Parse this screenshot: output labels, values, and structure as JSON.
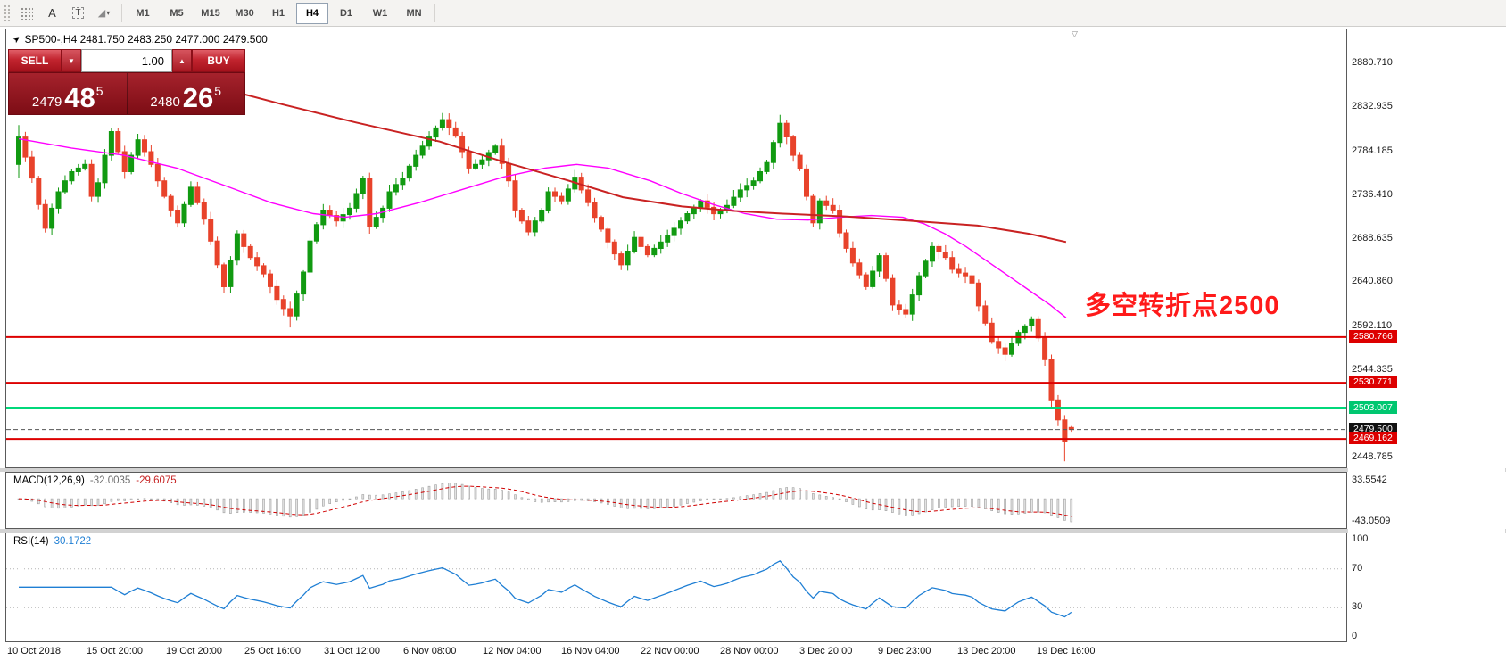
{
  "toolbar": {
    "tools": [
      {
        "name": "objects-grid-icon",
        "glyph": "dots"
      },
      {
        "name": "text-annotation-icon",
        "glyph": "A"
      },
      {
        "name": "label-tool-icon",
        "glyph": "T"
      },
      {
        "name": "draw-shapes-icon",
        "glyph": "◢"
      }
    ],
    "timeframes": [
      "M1",
      "M5",
      "M15",
      "M30",
      "H1",
      "H4",
      "D1",
      "W1",
      "MN"
    ],
    "active_timeframe": "H4"
  },
  "chart_header": {
    "symbol_line": "SP500-,H4 2481.750 2483.250 2477.000 2479.500"
  },
  "trade_panel": {
    "sell_label": "SELL",
    "buy_label": "BUY",
    "volume": "1.00",
    "sell_price_small": "2479",
    "sell_price_big": "48",
    "sell_price_sup": "5",
    "buy_price_small": "2480",
    "buy_price_big": "26",
    "buy_price_sup": "5"
  },
  "annotation": {
    "text": "多空转折点2500",
    "color": "#ff1a1a"
  },
  "macd": {
    "label": "MACD(12,26,9)",
    "value_main": "-32.0035",
    "value_signal": "-29.6075",
    "axis_max": "33.5542",
    "axis_min": "-43.0509"
  },
  "rsi": {
    "label": "RSI(14)",
    "value": "30.1722",
    "axis_levels": [
      100,
      70,
      30,
      0
    ]
  },
  "time_axis": [
    "10 Oct 2018",
    "15 Oct 20:00",
    "19 Oct 20:00",
    "25 Oct 16:00",
    "31 Oct 12:00",
    "6 Nov 08:00",
    "12 Nov 04:00",
    "16 Nov 04:00",
    "22 Nov 00:00",
    "28 Nov 00:00",
    "3 Dec 20:00",
    "9 Dec 23:00",
    "13 Dec 20:00",
    "19 Dec 16:00"
  ],
  "price_axis": {
    "gridlines": [
      2880.71,
      2832.935,
      2784.185,
      2736.41,
      2688.635,
      2640.86,
      2592.11,
      2544.335,
      2448.785
    ],
    "levels": [
      {
        "value": "2580.766",
        "price": 2580.766,
        "bg": "#dd0000",
        "width": 2
      },
      {
        "value": "2530.771",
        "price": 2530.771,
        "bg": "#dd0000",
        "width": 2
      },
      {
        "value": "2503.007",
        "price": 2503.007,
        "bg": "#00c770",
        "line": "#00d87a",
        "width": 3
      },
      {
        "value": "2479.500",
        "price": 2479.5,
        "bg": "#111111",
        "style": "dashed"
      },
      {
        "value": "2469.162",
        "price": 2469.162,
        "bg": "#dd0000",
        "width": 2
      }
    ]
  },
  "chart_data": {
    "type": "candlestick",
    "symbol": "SP500-",
    "timeframe": "H4",
    "title": "SP500-,H4",
    "ohlc_last": {
      "open": 2481.75,
      "high": 2483.25,
      "low": 2477.0,
      "close": 2479.5
    },
    "first_open": 2770,
    "ylim": [
      2436,
      2918
    ],
    "closes": [
      2800,
      2778,
      2755,
      2726,
      2700,
      2722,
      2740,
      2752,
      2762,
      2766,
      2770,
      2735,
      2750,
      2780,
      2806,
      2784,
      2762,
      2780,
      2797,
      2784,
      2770,
      2752,
      2735,
      2720,
      2706,
      2726,
      2745,
      2728,
      2710,
      2686,
      2660,
      2636,
      2665,
      2694,
      2680,
      2668,
      2659,
      2650,
      2636,
      2622,
      2612,
      2604,
      2628,
      2652,
      2686,
      2704,
      2720,
      2714,
      2708,
      2715,
      2722,
      2738,
      2755,
      2702,
      2712,
      2722,
      2740,
      2748,
      2755,
      2768,
      2780,
      2790,
      2800,
      2810,
      2819,
      2810,
      2801,
      2784,
      2766,
      2770,
      2775,
      2783,
      2790,
      2771,
      2752,
      2720,
      2708,
      2696,
      2708,
      2720,
      2740,
      2735,
      2730,
      2743,
      2756,
      2742,
      2728,
      2712,
      2699,
      2685,
      2672,
      2660,
      2675,
      2690,
      2680,
      2671,
      2678,
      2685,
      2692,
      2700,
      2708,
      2716,
      2723,
      2730,
      2723,
      2716,
      2720,
      2725,
      2734,
      2742,
      2747,
      2752,
      2762,
      2772,
      2794,
      2815,
      2800,
      2780,
      2765,
      2735,
      2706,
      2730,
      2725,
      2720,
      2695,
      2678,
      2662,
      2649,
      2636,
      2653,
      2670,
      2645,
      2616,
      2611,
      2606,
      2627,
      2648,
      2664,
      2680,
      2674,
      2668,
      2655,
      2651,
      2648,
      2640,
      2615,
      2596,
      2576,
      2569,
      2562,
      2574,
      2586,
      2593,
      2600,
      2580,
      2556,
      2512,
      2490,
      2466,
      2479.5
    ],
    "wick_extras": {
      "0": [
        8,
        10
      ],
      "41": [
        2,
        8
      ],
      "64": [
        3,
        0
      ],
      "115": [
        4,
        0
      ],
      "158": [
        0,
        17
      ]
    },
    "ma_red": [
      [
        0.177,
        2858
      ],
      [
        0.25,
        2836
      ],
      [
        0.32,
        2816
      ],
      [
        0.4,
        2795
      ],
      [
        0.46,
        2773
      ],
      [
        0.52,
        2753
      ],
      [
        0.574,
        2734
      ],
      [
        0.63,
        2724
      ],
      [
        0.68,
        2719
      ],
      [
        0.726,
        2716
      ],
      [
        0.785,
        2713
      ],
      [
        0.85,
        2708
      ],
      [
        0.911,
        2703
      ],
      [
        0.96,
        2694
      ],
      [
        0.995,
        2685
      ]
    ],
    "ma_magenta": [
      [
        0.0,
        2798
      ],
      [
        0.05,
        2788
      ],
      [
        0.1,
        2780
      ],
      [
        0.15,
        2766
      ],
      [
        0.2,
        2745
      ],
      [
        0.24,
        2728
      ],
      [
        0.28,
        2716
      ],
      [
        0.31,
        2712
      ],
      [
        0.34,
        2716
      ],
      [
        0.38,
        2728
      ],
      [
        0.42,
        2742
      ],
      [
        0.46,
        2756
      ],
      [
        0.5,
        2766
      ],
      [
        0.53,
        2770
      ],
      [
        0.56,
        2766
      ],
      [
        0.6,
        2752
      ],
      [
        0.63,
        2738
      ],
      [
        0.66,
        2726
      ],
      [
        0.69,
        2716
      ],
      [
        0.72,
        2710
      ],
      [
        0.75,
        2709
      ],
      [
        0.78,
        2712
      ],
      [
        0.81,
        2714
      ],
      [
        0.84,
        2712
      ],
      [
        0.86,
        2705
      ],
      [
        0.88,
        2694
      ],
      [
        0.9,
        2680
      ],
      [
        0.92,
        2664
      ],
      [
        0.94,
        2648
      ],
      [
        0.96,
        2632
      ],
      [
        0.98,
        2616
      ],
      [
        0.995,
        2602
      ]
    ],
    "colors": {
      "up": "#119a11",
      "down": "#e8432b",
      "ma_red": "#c92222",
      "ma_magenta": "#ff00ff"
    }
  }
}
